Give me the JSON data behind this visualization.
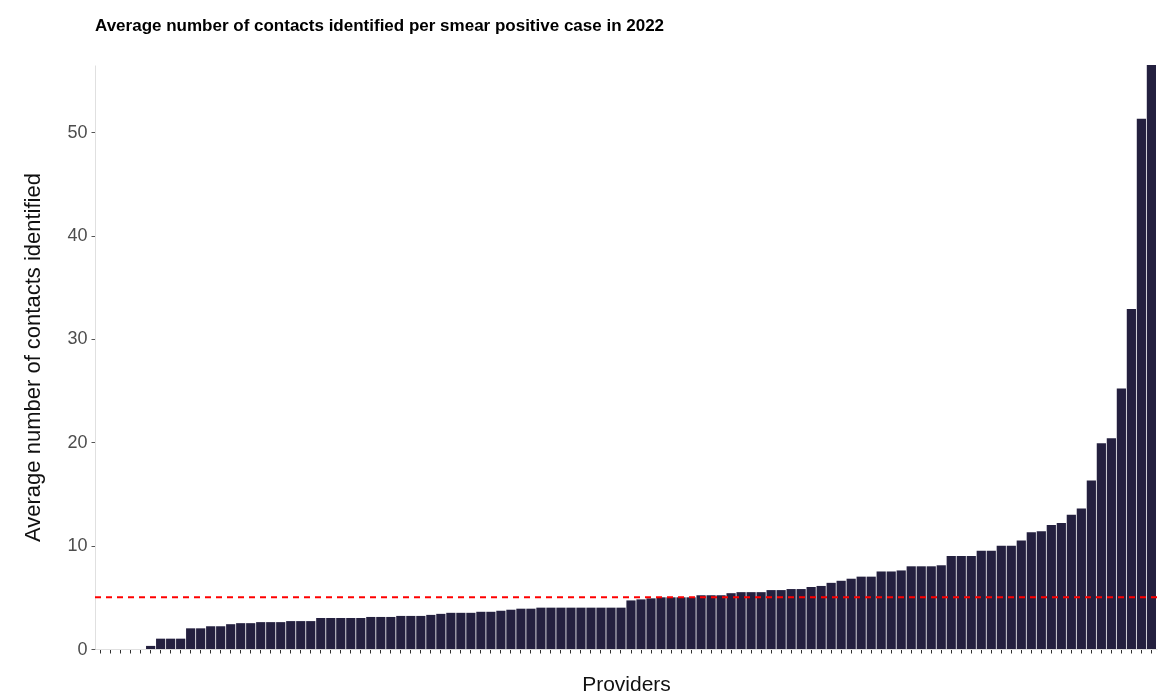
{
  "chart_data": {
    "type": "bar",
    "title": "Average number of contacts identified per smear positive case in 2022",
    "xlabel": "Providers",
    "ylabel": "Average number of contacts identified",
    "categories": [
      null,
      null,
      null,
      null,
      null,
      null,
      null,
      null,
      null,
      null,
      null,
      null,
      null,
      null,
      null,
      null,
      null,
      null,
      null,
      null,
      null,
      null,
      null,
      null,
      null,
      null,
      null,
      null,
      null,
      null,
      null,
      null,
      null,
      null,
      null,
      null,
      null,
      null,
      null,
      null,
      null,
      null,
      null,
      null,
      null,
      null,
      null,
      null,
      null,
      null,
      null,
      null,
      null,
      null,
      null,
      null,
      null,
      null,
      null,
      null,
      null,
      null,
      null,
      null,
      null,
      null,
      null,
      null,
      null,
      null,
      null,
      null,
      null,
      null,
      null,
      null,
      null,
      null,
      null,
      null,
      null,
      null,
      null,
      null,
      null,
      null,
      null,
      null,
      null,
      null,
      null,
      null,
      null,
      null,
      null,
      null,
      null,
      null,
      null,
      null,
      null,
      null,
      null,
      null,
      null,
      null
    ],
    "values": [
      0,
      0,
      0,
      0,
      0,
      0.3,
      1,
      1,
      1,
      2,
      2,
      2.2,
      2.2,
      2.4,
      2.5,
      2.5,
      2.6,
      2.6,
      2.6,
      2.7,
      2.7,
      2.7,
      3.0,
      3.0,
      3.0,
      3.0,
      3.0,
      3.1,
      3.1,
      3.1,
      3.2,
      3.2,
      3.2,
      3.3,
      3.4,
      3.5,
      3.5,
      3.5,
      3.6,
      3.6,
      3.7,
      3.8,
      3.9,
      3.9,
      4.0,
      4.0,
      4.0,
      4.0,
      4.0,
      4.0,
      4.0,
      4.0,
      4.0,
      4.7,
      4.8,
      4.9,
      5.0,
      5.0,
      5.0,
      5.0,
      5.2,
      5.2,
      5.2,
      5.4,
      5.5,
      5.5,
      5.5,
      5.7,
      5.7,
      5.8,
      5.8,
      6.0,
      6.1,
      6.4,
      6.6,
      6.8,
      7.0,
      7.0,
      7.5,
      7.5,
      7.6,
      8.0,
      8.0,
      8.0,
      8.1,
      9.0,
      9.0,
      9.0,
      9.5,
      9.5,
      10.0,
      10.0,
      10.5,
      11.3,
      11.4,
      12.0,
      12.2,
      13.0,
      13.6,
      16.3,
      19.9,
      20.4,
      25.2,
      32.9,
      51.3,
      56.5
    ],
    "color": "#24203f",
    "ylim": [
      0,
      56.5
    ],
    "yticks": [
      0,
      10,
      20,
      30,
      40,
      50
    ],
    "ref_lines": [
      {
        "axis": "y",
        "value": 5,
        "color": "#ff0000",
        "line_style": "dashed"
      }
    ]
  }
}
